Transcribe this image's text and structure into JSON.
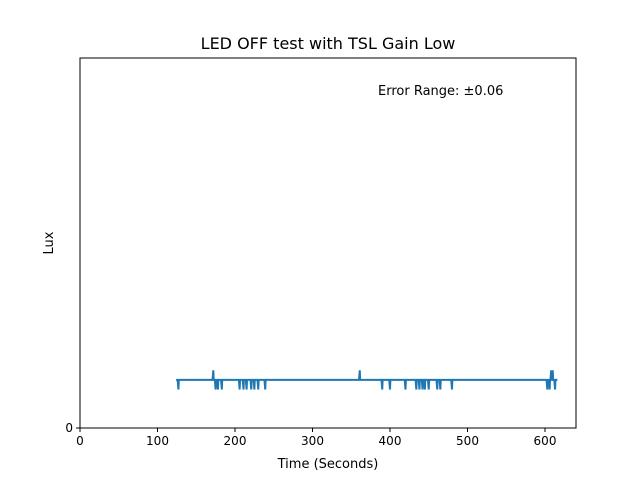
{
  "chart_data": {
    "type": "line",
    "title": "LED OFF test with TSL Gain Low",
    "xlabel": "Time (Seconds)",
    "ylabel": "Lux",
    "xlim": [
      0,
      640
    ],
    "ylim": [
      0,
      0.5
    ],
    "x_ticks": [
      0,
      100,
      200,
      300,
      400,
      500,
      600
    ],
    "y_ticks": [
      0
    ],
    "grid": false,
    "series_color": "#1f77b4",
    "annotation": "Error Range: ±0.06",
    "baseline": 0.065,
    "series": [
      {
        "values": [
          [
            124,
            0.065
          ],
          [
            126,
            0.065
          ],
          [
            127,
            0.052
          ],
          [
            127.5,
            0.065
          ],
          [
            171,
            0.065
          ],
          [
            172,
            0.078
          ],
          [
            172.5,
            0.065
          ],
          [
            174,
            0.065
          ],
          [
            175,
            0.052
          ],
          [
            175.5,
            0.065
          ],
          [
            177,
            0.065
          ],
          [
            178,
            0.052
          ],
          [
            178.5,
            0.065
          ],
          [
            182,
            0.065
          ],
          [
            183,
            0.052
          ],
          [
            183.5,
            0.065
          ],
          [
            205,
            0.065
          ],
          [
            206,
            0.052
          ],
          [
            206.5,
            0.065
          ],
          [
            210,
            0.065
          ],
          [
            211,
            0.052
          ],
          [
            211.5,
            0.065
          ],
          [
            214,
            0.065
          ],
          [
            215,
            0.052
          ],
          [
            215.5,
            0.065
          ],
          [
            220,
            0.065
          ],
          [
            221,
            0.052
          ],
          [
            221.5,
            0.065
          ],
          [
            224,
            0.065
          ],
          [
            225,
            0.052
          ],
          [
            225.5,
            0.065
          ],
          [
            229,
            0.065
          ],
          [
            230,
            0.052
          ],
          [
            230.5,
            0.065
          ],
          [
            238,
            0.065
          ],
          [
            239,
            0.052
          ],
          [
            239.5,
            0.065
          ],
          [
            360,
            0.065
          ],
          [
            361,
            0.078
          ],
          [
            361.5,
            0.065
          ],
          [
            389,
            0.065
          ],
          [
            390,
            0.052
          ],
          [
            390.5,
            0.065
          ],
          [
            399,
            0.065
          ],
          [
            400,
            0.052
          ],
          [
            400.5,
            0.065
          ],
          [
            419,
            0.065
          ],
          [
            420,
            0.052
          ],
          [
            420.5,
            0.065
          ],
          [
            433,
            0.065
          ],
          [
            434,
            0.052
          ],
          [
            434.5,
            0.065
          ],
          [
            437,
            0.065
          ],
          [
            438,
            0.052
          ],
          [
            438.5,
            0.065
          ],
          [
            441,
            0.065
          ],
          [
            442,
            0.052
          ],
          [
            442.5,
            0.065
          ],
          [
            444,
            0.065
          ],
          [
            445,
            0.052
          ],
          [
            445.5,
            0.065
          ],
          [
            449,
            0.065
          ],
          [
            450,
            0.052
          ],
          [
            450.5,
            0.065
          ],
          [
            460,
            0.065
          ],
          [
            461,
            0.052
          ],
          [
            461.5,
            0.065
          ],
          [
            464,
            0.065
          ],
          [
            465,
            0.052
          ],
          [
            465.5,
            0.065
          ],
          [
            479,
            0.065
          ],
          [
            480,
            0.052
          ],
          [
            480.5,
            0.065
          ],
          [
            602,
            0.065
          ],
          [
            603,
            0.052
          ],
          [
            603.5,
            0.065
          ],
          [
            605,
            0.065
          ],
          [
            606,
            0.052
          ],
          [
            606.5,
            0.065
          ],
          [
            607,
            0.065
          ],
          [
            608,
            0.078
          ],
          [
            608.5,
            0.065
          ],
          [
            609,
            0.065
          ],
          [
            610,
            0.078
          ],
          [
            610.5,
            0.065
          ],
          [
            612,
            0.065
          ],
          [
            613,
            0.052
          ],
          [
            613.5,
            0.065
          ],
          [
            616,
            0.065
          ]
        ]
      }
    ]
  }
}
